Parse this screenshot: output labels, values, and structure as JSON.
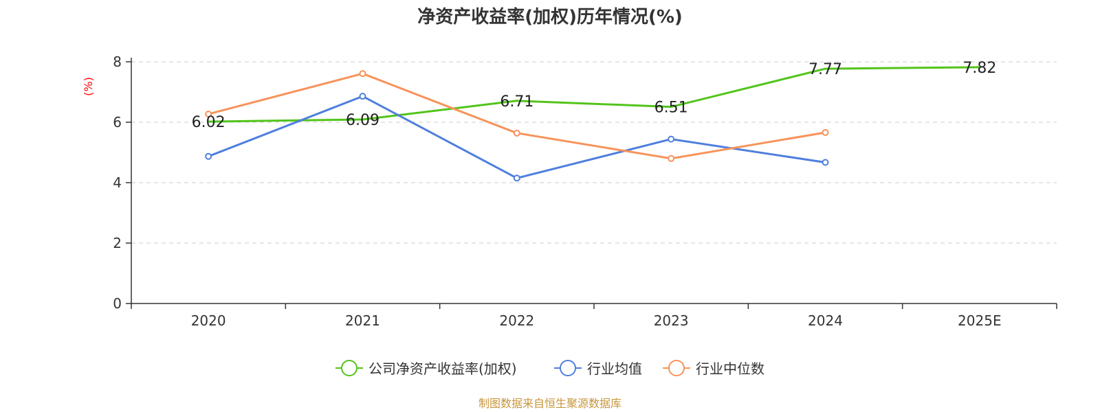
{
  "chart_data": {
    "type": "line",
    "title": "净资产收益率(加权)历年情况(%)",
    "ylabel": "(%)",
    "xlabel": "",
    "categories": [
      "2020",
      "2021",
      "2022",
      "2023",
      "2024",
      "2025E"
    ],
    "ylim": [
      0,
      8
    ],
    "yticks": [
      0,
      2,
      4,
      6,
      8
    ],
    "grid": true,
    "legend_position": "bottom",
    "series": [
      {
        "name": "公司净资产收益率(加权)",
        "color": "#52c41a",
        "values": [
          6.02,
          6.09,
          6.71,
          6.51,
          7.77,
          7.82
        ],
        "labels": [
          "6.02",
          "6.09",
          "6.71",
          "6.51",
          "7.77",
          "7.82"
        ],
        "show_markers": false
      },
      {
        "name": "行业均值",
        "color": "#4e7fdd",
        "values": [
          4.87,
          6.86,
          4.15,
          5.44,
          4.67,
          null
        ],
        "show_markers": true
      },
      {
        "name": "行业中位数",
        "color": "#f7935a",
        "values": [
          6.27,
          7.61,
          5.64,
          4.8,
          5.66,
          null
        ],
        "show_markers": true
      }
    ],
    "source": "制图数据来自恒生聚源数据库"
  },
  "colors": {
    "axis": "#333333",
    "grid": "#cccccc",
    "ylabel": "#ff0000",
    "source": "#c8963c",
    "title": "#333333"
  }
}
